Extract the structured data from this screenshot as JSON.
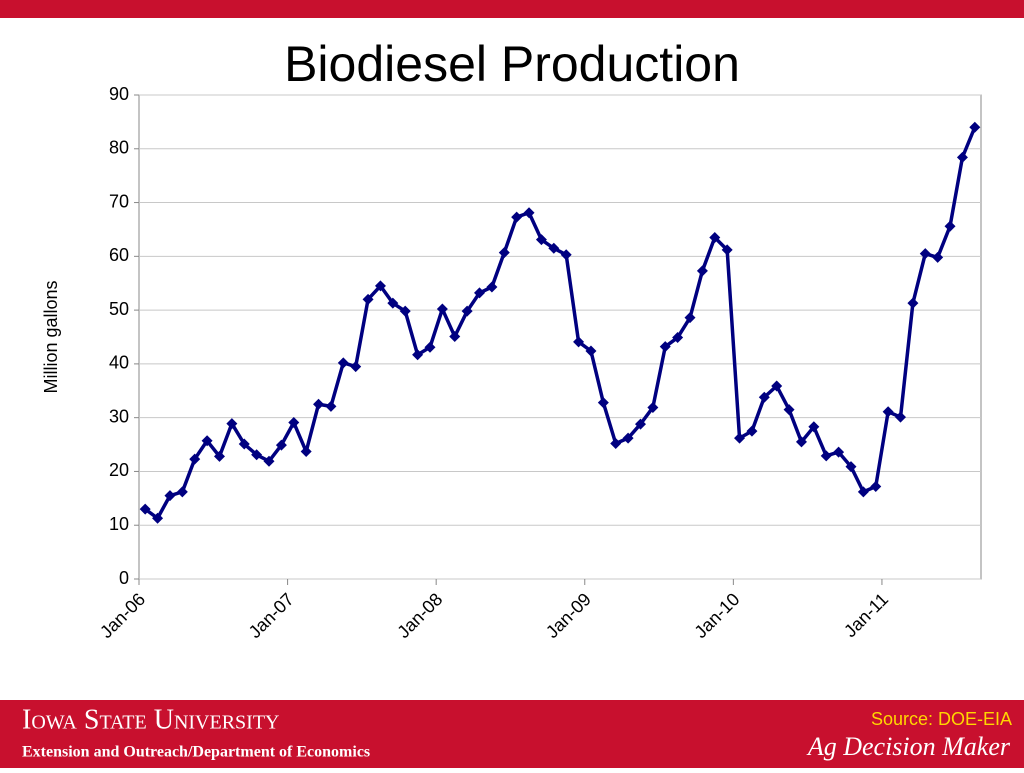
{
  "chart_data": {
    "type": "line",
    "title": "Biodiesel Production",
    "ylabel": "Million gallons",
    "categories": [
      "Jan-06",
      null,
      null,
      null,
      null,
      null,
      null,
      null,
      null,
      null,
      null,
      null,
      "Jan-07",
      null,
      null,
      null,
      null,
      null,
      null,
      null,
      null,
      null,
      null,
      null,
      "Jan-08",
      null,
      null,
      null,
      null,
      null,
      null,
      null,
      null,
      null,
      null,
      null,
      "Jan-09",
      null,
      null,
      null,
      null,
      null,
      null,
      null,
      null,
      null,
      null,
      null,
      "Jan-10",
      null,
      null,
      null,
      null,
      null,
      null,
      null,
      null,
      null,
      null,
      null,
      "Jan-11",
      null,
      null,
      null,
      null,
      null,
      null,
      null
    ],
    "values": [
      13,
      11.3,
      15.5,
      16.2,
      22.3,
      25.7,
      22.8,
      28.9,
      25.1,
      23.1,
      21.9,
      24.9,
      29.1,
      23.7,
      32.5,
      32.1,
      40.2,
      39.5,
      52,
      54.5,
      51.3,
      49.8,
      41.7,
      43.1,
      50.2,
      45.1,
      49.8,
      53.2,
      54.3,
      60.7,
      67.3,
      68.1,
      63.1,
      61.5,
      60.3,
      44.1,
      42.4,
      32.8,
      25.2,
      26.2,
      28.8,
      31.9,
      43.2,
      44.9,
      48.6,
      57.3,
      63.5,
      61.2,
      26.2,
      27.5,
      33.8,
      35.9,
      31.5,
      25.5,
      28.3,
      22.9,
      23.6,
      20.9,
      16.2,
      17.2,
      31.1,
      30.1,
      51.3,
      60.5,
      59.8,
      65.6,
      78.4,
      84
    ],
    "color": "#000080",
    "ylim": [
      0,
      90
    ],
    "yticks": [
      0,
      10,
      20,
      30,
      40,
      50,
      60,
      70,
      80,
      90
    ],
    "grid": true
  },
  "footer": {
    "university": "Iowa State University",
    "department": "Extension and Outreach/Department of Economics",
    "source": "Source: DOE-EIA",
    "brand": "Ag Decision Maker"
  }
}
